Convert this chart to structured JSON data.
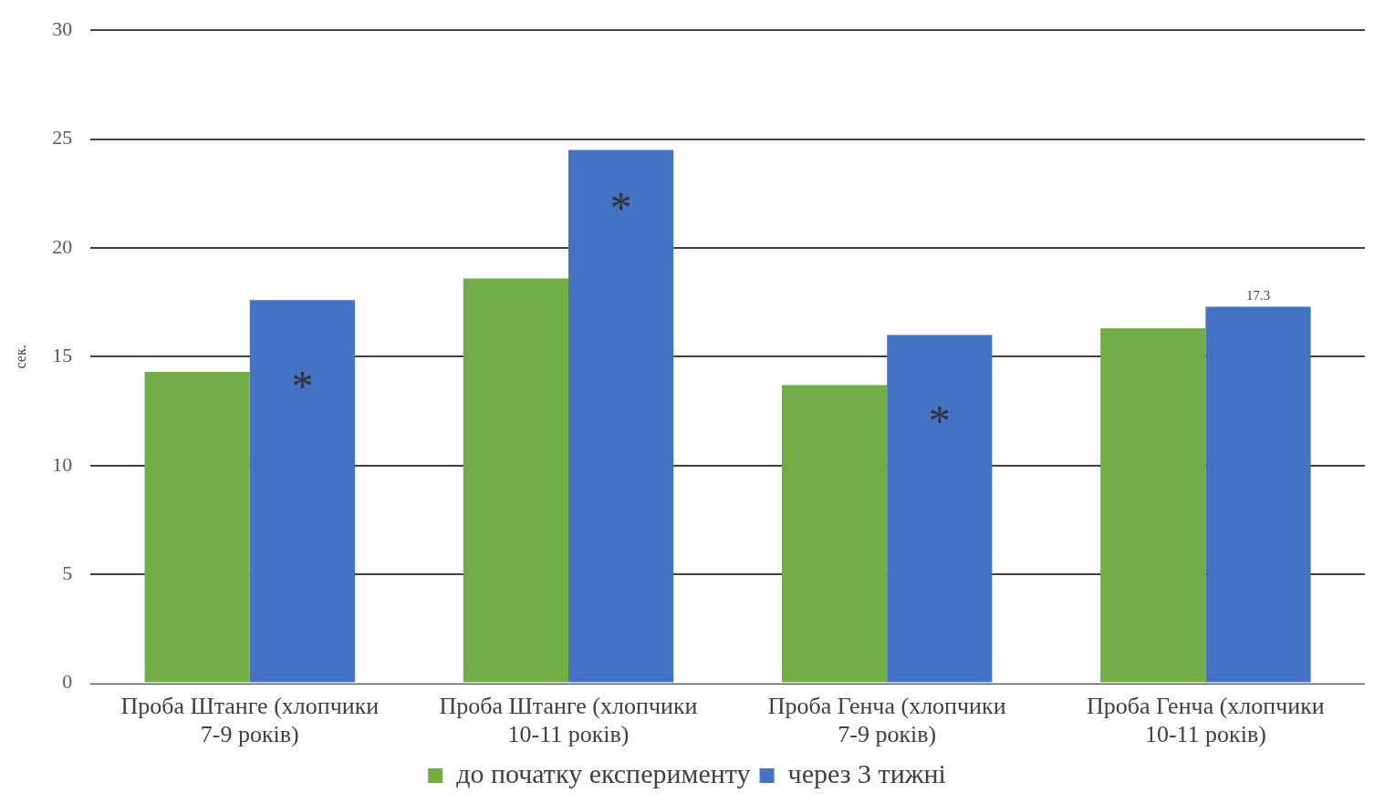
{
  "chart_data": {
    "type": "bar",
    "ylabel": "сек.",
    "categories": [
      "Проба Штанге (хлопчики 7-9 років)",
      "Проба Штанге (хлопчики 10-11 років)",
      "Проба Генча (хлопчики 7-9 років)",
      "Проба Генча (хлопчики 10-11 років)"
    ],
    "series": [
      {
        "name": "до початку експерименту",
        "color": "#70ad47",
        "values": [
          14.3,
          18.6,
          13.7,
          16.3
        ]
      },
      {
        "name": "через 3 тижні",
        "color": "#4472c4",
        "values": [
          17.6,
          24.5,
          16.0,
          17.3
        ],
        "value_labels": [
          null,
          null,
          null,
          "17.3"
        ]
      }
    ],
    "ylim": [
      0,
      30
    ],
    "yticks": [
      0,
      5,
      10,
      15,
      20,
      25,
      30
    ],
    "grid": "y",
    "legend": "bottom",
    "annotations": [
      {
        "text": "*",
        "x": "Проба Штанге (хлопчики 7-9 років)",
        "y": 14.0
      },
      {
        "text": "*",
        "x": "Проба Штанге (хлопчики 10-11 років)",
        "y": 22.2
      },
      {
        "text": "*",
        "x": "Проба Генча (хлопчики 7-9 років)",
        "y": 12.4
      }
    ]
  }
}
